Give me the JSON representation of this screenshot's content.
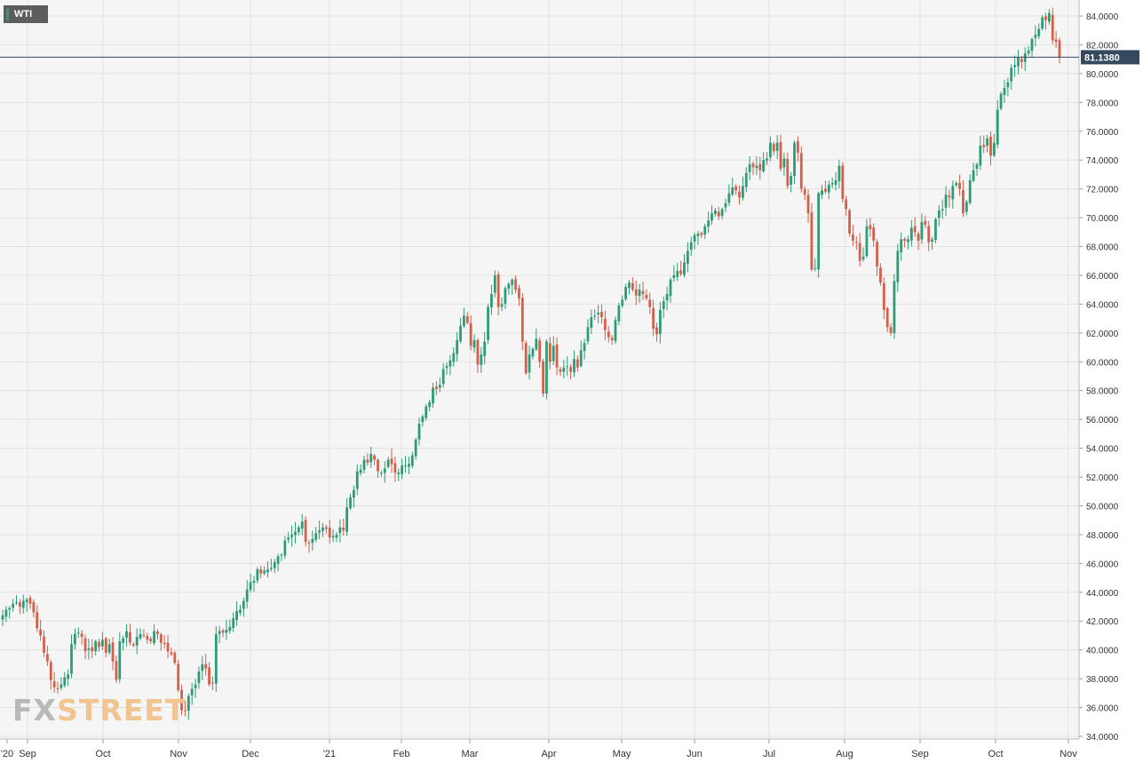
{
  "symbol": "WTI",
  "logo": {
    "part1": "FX",
    "part2": "STREET"
  },
  "current_price_label": "81.1380",
  "colors": {
    "background": "#f5f5f5",
    "grid": "#e2e2e2",
    "up": "#2e9b78",
    "down": "#d2604a",
    "price_line": "#34495e",
    "price_badge": "#34495e",
    "axis_text": "#333333"
  },
  "chart_data": {
    "type": "candlestick",
    "title": "",
    "xlabel": "",
    "ylabel": "",
    "ylim": [
      34,
      85
    ],
    "y_ticks": [
      "34.0000",
      "36.0000",
      "38.0000",
      "40.0000",
      "42.0000",
      "44.0000",
      "46.0000",
      "48.0000",
      "50.0000",
      "52.0000",
      "54.0000",
      "56.0000",
      "58.0000",
      "60.0000",
      "62.0000",
      "64.0000",
      "66.0000",
      "68.0000",
      "70.0000",
      "72.0000",
      "74.0000",
      "76.0000",
      "78.0000",
      "80.0000",
      "82.0000",
      "84.0000"
    ],
    "x_labels": [
      "'20",
      "Sep",
      "Oct",
      "Nov",
      "Dec",
      "'21",
      "Feb",
      "Mar",
      "Apr",
      "May",
      "Jun",
      "Jul",
      "Aug",
      "Sep",
      "Oct",
      "Nov"
    ],
    "grid": true,
    "current_price": 81.138,
    "closes": [
      42.4,
      42.8,
      42.9,
      43.2,
      43.3,
      43.0,
      43.4,
      43.5,
      43.2,
      42.6,
      41.5,
      41.0,
      39.8,
      39.2,
      37.9,
      37.4,
      37.3,
      37.6,
      38.1,
      38.3,
      40.4,
      41.1,
      41.2,
      40.9,
      39.9,
      40.1,
      39.9,
      40.6,
      40.2,
      40.7,
      39.8,
      40.4,
      39.2,
      37.9,
      40.6,
      40.8,
      41.3,
      40.5,
      40.3,
      40.9,
      41.1,
      41.0,
      40.7,
      40.6,
      41.3,
      41.1,
      40.5,
      40.4,
      39.9,
      39.7,
      39.1,
      37.2,
      35.8,
      35.8,
      36.8,
      37.3,
      37.6,
      38.5,
      39.0,
      38.7,
      37.6,
      37.7,
      41.1,
      41.3,
      41.2,
      41.4,
      41.6,
      42.2,
      42.7,
      42.8,
      43.4,
      44.2,
      44.7,
      44.8,
      45.6,
      45.3,
      45.5,
      45.6,
      45.7,
      46.1,
      46.5,
      46.6,
      47.6,
      47.8,
      48.0,
      48.2,
      48.5,
      48.9,
      47.5,
      47.4,
      47.7,
      48.1,
      48.3,
      48.5,
      48.4,
      47.8,
      47.9,
      48.0,
      48.5,
      48.3,
      49.9,
      50.6,
      51.1,
      52.4,
      52.5,
      53.2,
      53.0,
      53.6,
      53.2,
      52.4,
      52.3,
      52.6,
      53.2,
      52.9,
      52.3,
      52.3,
      52.8,
      52.8,
      52.9,
      53.5,
      54.6,
      55.7,
      56.2,
      56.9,
      57.2,
      58.2,
      58.1,
      58.4,
      59.5,
      59.7,
      60.1,
      60.6,
      61.5,
      62.5,
      63.2,
      62.7,
      61.1,
      61.5,
      59.8,
      60.5,
      61.4,
      63.8,
      64.7,
      66.0,
      63.8,
      64.0,
      65.1,
      65.4,
      65.7,
      65.0,
      64.4,
      61.4,
      59.2,
      60.5,
      60.9,
      61.6,
      60.0,
      57.8,
      61.4,
      60.0,
      61.1,
      59.6,
      59.3,
      59.6,
      59.7,
      59.3,
      60.2,
      59.6,
      60.8,
      61.3,
      62.4,
      63.1,
      63.2,
      63.4,
      63.1,
      62.2,
      61.7,
      61.5,
      62.9,
      63.9,
      64.3,
      65.2,
      65.5,
      65.0,
      64.6,
      65.0,
      64.7,
      64.4,
      63.8,
      62.3,
      61.9,
      63.6,
      64.2,
      64.7,
      65.7,
      66.0,
      66.3,
      66.1,
      66.9,
      67.7,
      68.3,
      68.8,
      68.9,
      68.8,
      69.4,
      69.8,
      70.3,
      70.5,
      70.1,
      70.6,
      71.0,
      71.7,
      72.1,
      71.9,
      71.4,
      72.2,
      73.1,
      73.7,
      73.5,
      73.6,
      73.3,
      74.0,
      74.1,
      75.2,
      74.6,
      75.2,
      73.4,
      74.1,
      72.2,
      72.9,
      75.2,
      74.5,
      72.0,
      71.6,
      70.3,
      66.4,
      66.5,
      71.7,
      71.9,
      71.8,
      72.3,
      72.4,
      72.6,
      73.6,
      71.3,
      70.6,
      68.9,
      68.4,
      68.3,
      67.0,
      67.3,
      69.4,
      69.2,
      68.4,
      66.6,
      65.5,
      63.6,
      62.4,
      62.0,
      65.6,
      67.7,
      68.5,
      68.4,
      68.5,
      69.3,
      69.0,
      68.4,
      69.7,
      69.5,
      68.3,
      68.5,
      69.9,
      70.5,
      70.6,
      71.6,
      71.4,
      72.2,
      72.4,
      72.0,
      70.3,
      71.1,
      72.6,
      73.3,
      73.7,
      75.0,
      74.9,
      75.5,
      74.3,
      75.2,
      77.5,
      78.6,
      79.0,
      79.4,
      80.4,
      80.6,
      81.1,
      80.8,
      81.4,
      81.6,
      82.4,
      82.7,
      83.1,
      83.9,
      83.7,
      84.2,
      82.3,
      82.2,
      81.1
    ]
  }
}
